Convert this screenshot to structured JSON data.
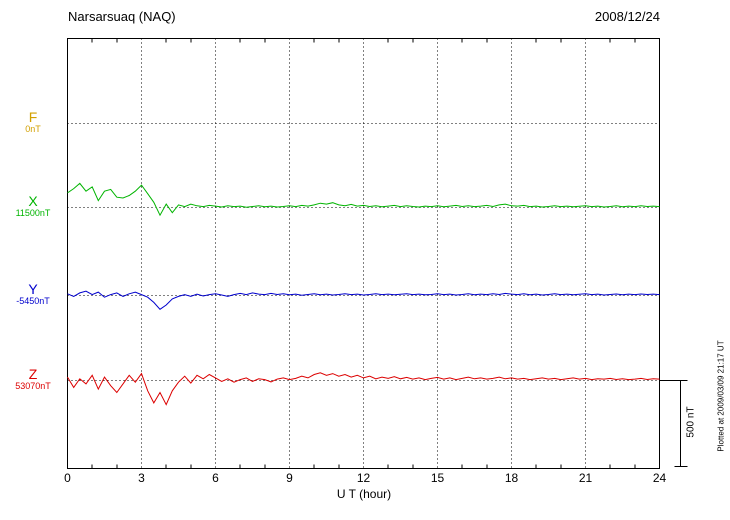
{
  "chart_data": {
    "type": "line",
    "title": "Narsarsuaq (NAQ)",
    "date": "2008/12/24",
    "xlabel": "U T (hour)",
    "x_range": [
      0,
      24
    ],
    "x_ticks": [
      0,
      3,
      6,
      9,
      12,
      15,
      18,
      21,
      24
    ],
    "t_start": 0,
    "t_step_hours": 0.25,
    "grid": true,
    "scale_bar": {
      "label": "500 nT",
      "span_nT": 500
    },
    "plotted_at": "Plotted at 2009/03/09 21:17 UT",
    "series": [
      {
        "name": "F",
        "color": "#d2a000",
        "baseline_label": "0nT",
        "baseline_nT": 0,
        "offsets_nT": null
      },
      {
        "name": "X",
        "color": "#00b400",
        "baseline_label": "11500nT",
        "baseline_nT": 11500,
        "offsets_nT": [
          85,
          110,
          140,
          95,
          120,
          40,
          95,
          105,
          60,
          55,
          70,
          95,
          130,
          80,
          30,
          -45,
          20,
          -30,
          15,
          5,
          20,
          10,
          5,
          12,
          8,
          3,
          10,
          5,
          8,
          2,
          6,
          10,
          4,
          8,
          3,
          6,
          10,
          5,
          12,
          8,
          15,
          25,
          20,
          28,
          15,
          10,
          18,
          8,
          12,
          6,
          10,
          4,
          8,
          12,
          5,
          10,
          6,
          3,
          8,
          5,
          10,
          4,
          8,
          12,
          6,
          10,
          5,
          8,
          12,
          6,
          15,
          20,
          10,
          8,
          12,
          5,
          8,
          3,
          6,
          10,
          5,
          8,
          4,
          7,
          10,
          5,
          8,
          3,
          6,
          10,
          4,
          8,
          5,
          10,
          6,
          8,
          5
        ]
      },
      {
        "name": "Y",
        "color": "#0000cd",
        "baseline_label": "-5450nT",
        "baseline_nT": -5450,
        "offsets_nT": [
          10,
          -5,
          15,
          25,
          5,
          20,
          -10,
          5,
          15,
          -5,
          10,
          20,
          5,
          -10,
          -40,
          -80,
          -55,
          -20,
          -5,
          5,
          -5,
          8,
          -3,
          5,
          10,
          3,
          -5,
          5,
          12,
          5,
          15,
          8,
          5,
          12,
          6,
          10,
          4,
          8,
          2,
          6,
          10,
          4,
          8,
          3,
          6,
          10,
          5,
          8,
          3,
          6,
          10,
          5,
          8,
          4,
          7,
          10,
          5,
          8,
          4,
          6,
          10,
          5,
          8,
          3,
          6,
          10,
          4,
          8,
          5,
          10,
          6,
          12,
          8,
          5,
          10,
          4,
          8,
          3,
          6,
          10,
          5,
          8,
          4,
          7,
          10,
          5,
          8,
          3,
          6,
          9,
          4,
          8,
          5,
          9,
          6,
          8,
          5
        ]
      },
      {
        "name": "Z",
        "color": "#dc0000",
        "baseline_label": "53070nT",
        "baseline_nT": 53070,
        "offsets_nT": [
          20,
          -40,
          10,
          -20,
          30,
          -50,
          20,
          -30,
          -70,
          -20,
          30,
          -10,
          40,
          -60,
          -130,
          -70,
          -140,
          -60,
          -10,
          25,
          -15,
          30,
          10,
          35,
          15,
          -5,
          10,
          -10,
          5,
          15,
          -5,
          10,
          5,
          -8,
          8,
          15,
          5,
          12,
          25,
          15,
          35,
          45,
          30,
          40,
          25,
          35,
          20,
          30,
          15,
          25,
          10,
          20,
          12,
          22,
          10,
          18,
          8,
          15,
          5,
          12,
          18,
          8,
          15,
          5,
          12,
          20,
          10,
          15,
          8,
          12,
          20,
          10,
          15,
          8,
          12,
          5,
          10,
          15,
          8,
          12,
          5,
          10,
          15,
          8,
          12,
          5,
          10,
          8,
          12,
          6,
          10,
          5,
          8,
          12,
          6,
          10,
          8
        ]
      }
    ]
  }
}
